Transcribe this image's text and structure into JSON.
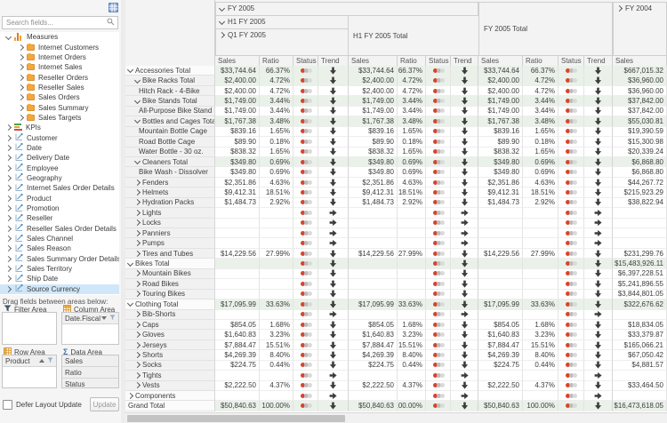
{
  "colors": {
    "status_red": "#d8442b",
    "total_row_bg": "#e9f1e9",
    "selection_bg": "#cfe7f8",
    "folder_orange": "#f4a73b",
    "header_bg": "#f3f3f3"
  },
  "field_list": {
    "search_placeholder": "Search fields...",
    "drag_hint": "Drag fields between areas below:",
    "defer_label": "Defer Layout Update",
    "update_label": "Update",
    "tree": [
      {
        "label": "Measures",
        "icon": "measures-icon",
        "chev": "down",
        "level": 0
      },
      {
        "label": "Internet Customers",
        "icon": "folder-icon",
        "chev": "right",
        "level": 1
      },
      {
        "label": "Internet Orders",
        "icon": "folder-icon",
        "chev": "right",
        "level": 1
      },
      {
        "label": "Internet Sales",
        "icon": "folder-icon",
        "chev": "right",
        "level": 1
      },
      {
        "label": "Reseller Orders",
        "icon": "folder-icon",
        "chev": "right",
        "level": 1
      },
      {
        "label": "Reseller Sales",
        "icon": "folder-icon",
        "chev": "right",
        "level": 1
      },
      {
        "label": "Sales Orders",
        "icon": "folder-icon",
        "chev": "right",
        "level": 1
      },
      {
        "label": "Sales Summary",
        "icon": "folder-icon",
        "chev": "right",
        "level": 1
      },
      {
        "label": "Sales Targets",
        "icon": "folder-icon",
        "chev": "right",
        "level": 1
      },
      {
        "label": "KPIs",
        "icon": "kpi-icon",
        "chev": "right",
        "level": 0
      },
      {
        "label": "Customer",
        "icon": "dimension-icon",
        "chev": "right",
        "level": 0
      },
      {
        "label": "Date",
        "icon": "dimension-icon",
        "chev": "right",
        "level": 0
      },
      {
        "label": "Delivery Date",
        "icon": "dimension-icon",
        "chev": "right",
        "level": 0
      },
      {
        "label": "Employee",
        "icon": "dimension-icon",
        "chev": "right",
        "level": 0
      },
      {
        "label": "Geography",
        "icon": "dimension-icon",
        "chev": "right",
        "level": 0
      },
      {
        "label": "Internet Sales Order Details",
        "icon": "dimension-icon",
        "chev": "right",
        "level": 0
      },
      {
        "label": "Product",
        "icon": "dimension-icon",
        "chev": "right",
        "level": 0
      },
      {
        "label": "Promotion",
        "icon": "dimension-icon",
        "chev": "right",
        "level": 0
      },
      {
        "label": "Reseller",
        "icon": "dimension-icon",
        "chev": "right",
        "level": 0
      },
      {
        "label": "Reseller Sales Order Details",
        "icon": "dimension-icon",
        "chev": "right",
        "level": 0
      },
      {
        "label": "Sales Channel",
        "icon": "dimension-icon",
        "chev": "right",
        "level": 0
      },
      {
        "label": "Sales Reason",
        "icon": "dimension-icon",
        "chev": "right",
        "level": 0
      },
      {
        "label": "Sales Summary Order Details",
        "icon": "dimension-icon",
        "chev": "right",
        "level": 0
      },
      {
        "label": "Sales Territory",
        "icon": "dimension-icon",
        "chev": "right",
        "level": 0
      },
      {
        "label": "Ship Date",
        "icon": "dimension-icon",
        "chev": "right",
        "level": 0
      },
      {
        "label": "Source Currency",
        "icon": "dimension-icon",
        "chev": "right",
        "level": 0,
        "selected": true
      }
    ],
    "areas": {
      "filter": {
        "label": "Filter Area",
        "items": []
      },
      "column": {
        "label": "Column Area",
        "items": [
          {
            "name": "Date.Fiscal",
            "sort": "desc"
          }
        ]
      },
      "row": {
        "label": "Row Area",
        "items": [
          {
            "name": "Product",
            "sort": "asc"
          }
        ]
      },
      "data": {
        "label": "Data Area",
        "items": [
          {
            "name": "Sales"
          },
          {
            "name": "Ratio"
          },
          {
            "name": "Status"
          }
        ]
      }
    }
  },
  "pivot": {
    "headers": {
      "fy2005": "FY 2005",
      "h1": "H1 FY 2005",
      "q1": "Q1 FY 2005",
      "h1_total": "H1 FY 2005 Total",
      "fy2005_total": "FY 2005 Total",
      "fy2004": "FY 2004",
      "measure_labels": [
        "Sales",
        "Ratio",
        "Status",
        "Trend"
      ],
      "fy2004_measure": "Sales"
    },
    "rows": [
      {
        "label": "Accessories Total",
        "level": 0,
        "chev": "down",
        "total": true,
        "sales": "$33,744.64",
        "ratio": "66.37%",
        "status": "red",
        "trend": "down",
        "fy2004": "$667,015.32"
      },
      {
        "label": "Bike Racks Total",
        "level": 1,
        "chev": "down",
        "total": true,
        "sales": "$2,400.00",
        "ratio": "4.72%",
        "status": "red",
        "trend": "down",
        "fy2004": "$36,960.00"
      },
      {
        "label": "Hitch Rack - 4-Bike",
        "level": 2,
        "chev": "",
        "total": false,
        "sales": "$2,400.00",
        "ratio": "4.72%",
        "status": "red",
        "trend": "down",
        "fy2004": "$36,960.00"
      },
      {
        "label": "Bike Stands Total",
        "level": 1,
        "chev": "down",
        "total": true,
        "sales": "$1,749.00",
        "ratio": "3.44%",
        "status": "red",
        "trend": "down",
        "fy2004": "$37,842.00"
      },
      {
        "label": "All-Purpose Bike Stand",
        "level": 2,
        "chev": "",
        "total": false,
        "sales": "$1,749.00",
        "ratio": "3.44%",
        "status": "red",
        "trend": "down",
        "fy2004": "$37,842.00"
      },
      {
        "label": "Bottles and Cages Total",
        "level": 1,
        "chev": "down",
        "total": true,
        "sales": "$1,767.38",
        "ratio": "3.48%",
        "status": "red",
        "trend": "down",
        "fy2004": "$55,030.81"
      },
      {
        "label": "Mountain Bottle Cage",
        "level": 2,
        "chev": "",
        "total": false,
        "sales": "$839.16",
        "ratio": "1.65%",
        "status": "red",
        "trend": "down",
        "fy2004": "$19,390.59"
      },
      {
        "label": "Road Bottle Cage",
        "level": 2,
        "chev": "",
        "total": false,
        "sales": "$89.90",
        "ratio": "0.18%",
        "status": "red",
        "trend": "down",
        "fy2004": "$15,300.98"
      },
      {
        "label": "Water Bottle - 30 oz.",
        "level": 2,
        "chev": "",
        "total": false,
        "sales": "$838.32",
        "ratio": "1.65%",
        "status": "red",
        "trend": "down",
        "fy2004": "$20,339.24"
      },
      {
        "label": "Cleaners Total",
        "level": 1,
        "chev": "down",
        "total": true,
        "sales": "$349.80",
        "ratio": "0.69%",
        "status": "red",
        "trend": "down",
        "fy2004": "$6,868.80"
      },
      {
        "label": "Bike Wash - Dissolver",
        "level": 2,
        "chev": "",
        "total": false,
        "sales": "$349.80",
        "ratio": "0.69%",
        "status": "red",
        "trend": "down",
        "fy2004": "$6,868.80"
      },
      {
        "label": "Fenders",
        "level": 1,
        "chev": "right",
        "total": false,
        "sales": "$2,351.86",
        "ratio": "4.63%",
        "status": "red",
        "trend": "down",
        "fy2004": "$44,267.72"
      },
      {
        "label": "Helmets",
        "level": 1,
        "chev": "right",
        "total": false,
        "sales": "$9,412.31",
        "ratio": "18.51%",
        "status": "red",
        "trend": "down",
        "fy2004": "$215,923.29"
      },
      {
        "label": "Hydration Packs",
        "level": 1,
        "chev": "right",
        "total": false,
        "sales": "$1,484.73",
        "ratio": "2.92%",
        "status": "red",
        "trend": "down",
        "fy2004": "$38,822.94"
      },
      {
        "label": "Lights",
        "level": 1,
        "chev": "right",
        "total": false,
        "sales": "",
        "ratio": "",
        "status": "red",
        "trend": "right",
        "fy2004": ""
      },
      {
        "label": "Locks",
        "level": 1,
        "chev": "right",
        "total": false,
        "sales": "",
        "ratio": "",
        "status": "red",
        "trend": "right",
        "fy2004": ""
      },
      {
        "label": "Panniers",
        "level": 1,
        "chev": "right",
        "total": false,
        "sales": "",
        "ratio": "",
        "status": "red",
        "trend": "right",
        "fy2004": ""
      },
      {
        "label": "Pumps",
        "level": 1,
        "chev": "right",
        "total": false,
        "sales": "",
        "ratio": "",
        "status": "red",
        "trend": "right",
        "fy2004": ""
      },
      {
        "label": "Tires and Tubes",
        "level": 1,
        "chev": "right",
        "total": false,
        "sales": "$14,229.56",
        "ratio": "27.99%",
        "status": "red",
        "trend": "down",
        "fy2004": "$231,299.76"
      },
      {
        "label": "Bikes Total",
        "level": 0,
        "chev": "down",
        "total": true,
        "sales": "",
        "ratio": "",
        "status": "red",
        "trend": "down",
        "fy2004": "$15,483,926.11"
      },
      {
        "label": "Mountain Bikes",
        "level": 1,
        "chev": "right",
        "total": false,
        "sales": "",
        "ratio": "",
        "status": "red",
        "trend": "down",
        "fy2004": "$6,397,228.51"
      },
      {
        "label": "Road Bikes",
        "level": 1,
        "chev": "right",
        "total": false,
        "sales": "",
        "ratio": "",
        "status": "red",
        "trend": "down",
        "fy2004": "$5,241,896.55"
      },
      {
        "label": "Touring Bikes",
        "level": 1,
        "chev": "right",
        "total": false,
        "sales": "",
        "ratio": "",
        "status": "red",
        "trend": "down",
        "fy2004": "$3,844,801.05"
      },
      {
        "label": "Clothing Total",
        "level": 0,
        "chev": "down",
        "total": true,
        "sales": "$17,095.99",
        "ratio": "33.63%",
        "status": "red",
        "trend": "down",
        "fy2004": "$322,676.62"
      },
      {
        "label": "Bib-Shorts",
        "level": 1,
        "chev": "right",
        "total": false,
        "sales": "",
        "ratio": "",
        "status": "red",
        "trend": "right",
        "fy2004": ""
      },
      {
        "label": "Caps",
        "level": 1,
        "chev": "right",
        "total": false,
        "sales": "$854.05",
        "ratio": "1.68%",
        "status": "red",
        "trend": "down",
        "fy2004": "$18,834.05"
      },
      {
        "label": "Gloves",
        "level": 1,
        "chev": "right",
        "total": false,
        "sales": "$1,640.83",
        "ratio": "3.23%",
        "status": "red",
        "trend": "down",
        "fy2004": "$33,379.87"
      },
      {
        "label": "Jerseys",
        "level": 1,
        "chev": "right",
        "total": false,
        "sales": "$7,884.47",
        "ratio": "15.51%",
        "status": "red",
        "trend": "down",
        "fy2004": "$165,066.21"
      },
      {
        "label": "Shorts",
        "level": 1,
        "chev": "right",
        "total": false,
        "sales": "$4,269.39",
        "ratio": "8.40%",
        "status": "red",
        "trend": "down",
        "fy2004": "$67,050.42"
      },
      {
        "label": "Socks",
        "level": 1,
        "chev": "right",
        "total": false,
        "sales": "$224.75",
        "ratio": "0.44%",
        "status": "red",
        "trend": "down",
        "fy2004": "$4,881.57"
      },
      {
        "label": "Tights",
        "level": 1,
        "chev": "right",
        "total": false,
        "sales": "",
        "ratio": "",
        "status": "red",
        "trend": "right",
        "fy2004": ""
      },
      {
        "label": "Vests",
        "level": 1,
        "chev": "right",
        "total": false,
        "sales": "$2,222.50",
        "ratio": "4.37%",
        "status": "red",
        "trend": "down",
        "fy2004": "$33,464.50"
      },
      {
        "label": "Components",
        "level": 0,
        "chev": "right",
        "total": false,
        "sales": "",
        "ratio": "",
        "status": "red",
        "trend": "right",
        "fy2004": ""
      },
      {
        "label": "Grand Total",
        "level": 0,
        "chev": "",
        "total": true,
        "sales": "$50,840.63",
        "ratio": "100.00%",
        "status": "red",
        "trend": "down",
        "fy2004": "$16,473,618.05"
      }
    ]
  }
}
